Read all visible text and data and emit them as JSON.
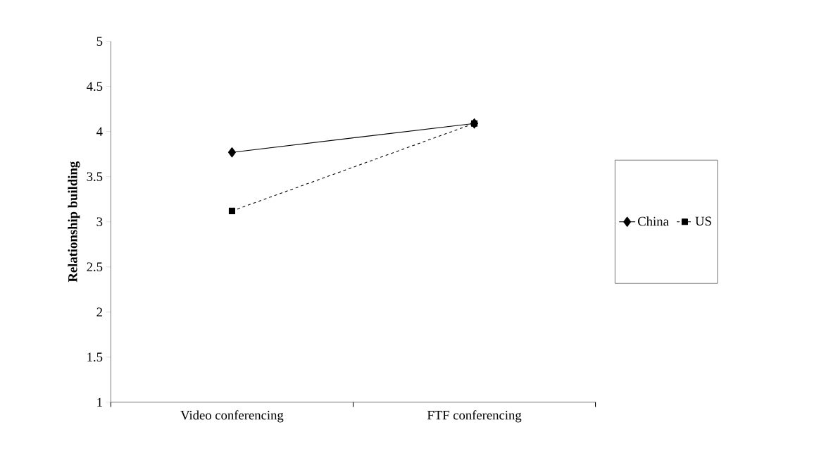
{
  "chart_data": {
    "type": "line",
    "ylabel": "Relationship building",
    "categories": [
      "Video conferencing",
      "FTF conferencing"
    ],
    "series": [
      {
        "name": "China",
        "color": "#000000",
        "values": [
          3.77,
          4.09
        ],
        "marker": "diamond",
        "line_style": "solid"
      },
      {
        "name": "US",
        "color": "#000000",
        "values": [
          3.12,
          4.09
        ],
        "marker": "square",
        "line_style": "dashed"
      }
    ],
    "ylim": [
      1,
      5
    ],
    "yticks": [
      1,
      1.5,
      2,
      2.5,
      3,
      3.5,
      4,
      4.5,
      5
    ],
    "grid": false,
    "legend": "right"
  }
}
